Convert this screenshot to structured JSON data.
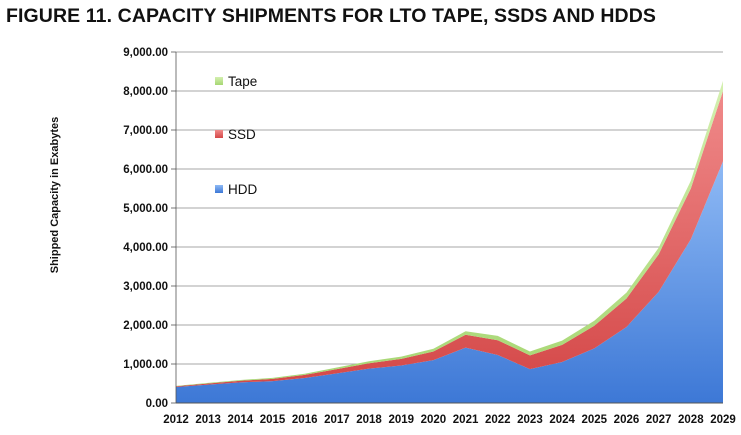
{
  "figure_title": "FIGURE 11.  CAPACITY SHIPMENTS FOR LTO TAPE, SSDS AND HDDS",
  "chart_data": {
    "type": "area",
    "stacked": true,
    "title": "FIGURE 11.  CAPACITY SHIPMENTS FOR LTO TAPE, SSDS AND HDDS",
    "xlabel": "",
    "ylabel": "Shipped Capacity in Exabytes",
    "ylim": [
      0,
      9000
    ],
    "yticks": [
      "0.00",
      "1,000.00",
      "2,000.00",
      "3,000.00",
      "4,000.00",
      "5,000.00",
      "6,000.00",
      "7,000.00",
      "8,000.00",
      "9,000.00"
    ],
    "grid": true,
    "legend_position": "top-left",
    "categories": [
      "2012",
      "2013",
      "2014",
      "2015",
      "2016",
      "2017",
      "2018",
      "2019",
      "2020",
      "2021",
      "2022",
      "2023",
      "2024",
      "2025",
      "2026",
      "2027",
      "2028",
      "2029"
    ],
    "series": [
      {
        "name": "HDD",
        "color": "#6a9fe8",
        "values": [
          410,
          470,
          530,
          560,
          640,
          760,
          880,
          960,
          1100,
          1420,
          1230,
          870,
          1050,
          1400,
          1950,
          2850,
          4200,
          6200
        ]
      },
      {
        "name": "SSD",
        "color": "#e06060",
        "values": [
          20,
          30,
          40,
          60,
          80,
          110,
          140,
          170,
          220,
          330,
          380,
          350,
          440,
          580,
          730,
          960,
          1300,
          1800
        ]
      },
      {
        "name": "Tape",
        "color": "#b8e28c",
        "values": [
          10,
          15,
          20,
          25,
          30,
          40,
          50,
          60,
          70,
          90,
          110,
          100,
          110,
          130,
          150,
          170,
          200,
          260
        ]
      }
    ],
    "legend_order": [
      "Tape",
      "SSD",
      "HDD"
    ]
  }
}
